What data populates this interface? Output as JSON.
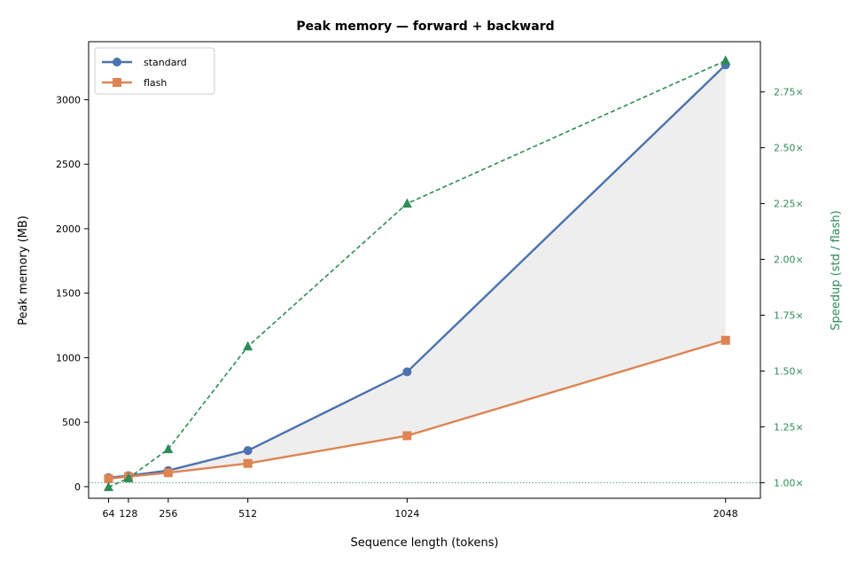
{
  "chart_data": {
    "type": "line",
    "title": "Peak memory — forward + backward",
    "xlabel": "Sequence length (tokens)",
    "ylabel": "Peak memory (MB)",
    "ylabel_right": "Speedup (std / flash)",
    "x": [
      64,
      128,
      256,
      512,
      1024,
      2048
    ],
    "x_tick_labels": [
      "64",
      "128",
      "256",
      "512",
      "1024",
      "2048"
    ],
    "xlim": [
      0,
      2160
    ],
    "ylim": [
      -90,
      3450
    ],
    "y_ticks": [
      0,
      500,
      1000,
      1500,
      2000,
      2500,
      3000
    ],
    "ylim_right": [
      0.93,
      2.975
    ],
    "y_ticks_right": [
      1.0,
      1.25,
      1.5,
      1.75,
      2.0,
      2.25,
      2.5,
      2.75
    ],
    "y_tick_labels_right": [
      "1.00×",
      "1.25×",
      "1.50×",
      "1.75×",
      "2.00×",
      "2.25×",
      "2.50×",
      "2.75×"
    ],
    "series": [
      {
        "name": "standard",
        "axis": "left",
        "marker": "circle",
        "color": "#4c72b0",
        "values": [
          70,
          85,
          125,
          280,
          890,
          3270
        ]
      },
      {
        "name": "flash",
        "axis": "left",
        "marker": "square",
        "color": "#dd8452",
        "values": [
          62,
          78,
          108,
          180,
          395,
          1135
        ]
      },
      {
        "name": "",
        "axis": "right",
        "marker": "triangle",
        "color": "#2e8b57",
        "dashed": true,
        "values": [
          0.98,
          1.02,
          1.15,
          1.61,
          2.25,
          2.89
        ]
      }
    ],
    "reference_line_right": 1.0,
    "fill_between": {
      "upper": "standard",
      "lower": "flash",
      "color": "#eeeeee"
    },
    "legend": {
      "position": "top-left",
      "entries": [
        "standard",
        "flash"
      ]
    },
    "grid": false
  }
}
